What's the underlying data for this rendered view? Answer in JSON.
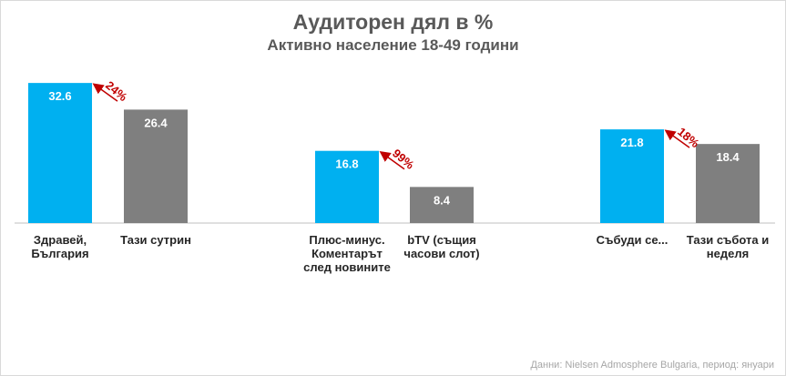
{
  "chart_data": {
    "type": "bar",
    "title": "Аудиторен дял в %",
    "subtitle": "Активно население 18-49 години",
    "categories": [
      "Здравей, България",
      "Тази сутрин",
      "Плюс-минус. Коментарът след новините",
      "bTV (същия часови слот)",
      "Събуди се...",
      "Тази събота и неделя"
    ],
    "values": [
      32.6,
      26.4,
      16.8,
      8.4,
      21.8,
      18.4
    ],
    "colors": [
      "#00b0f0",
      "#7f7f7f",
      "#00b0f0",
      "#7f7f7f",
      "#00b0f0",
      "#7f7f7f"
    ],
    "annotations": [
      "24%",
      "99%",
      "18%"
    ],
    "source": "Данни: Nielsen Admosphere Bulgaria, период: януари"
  }
}
